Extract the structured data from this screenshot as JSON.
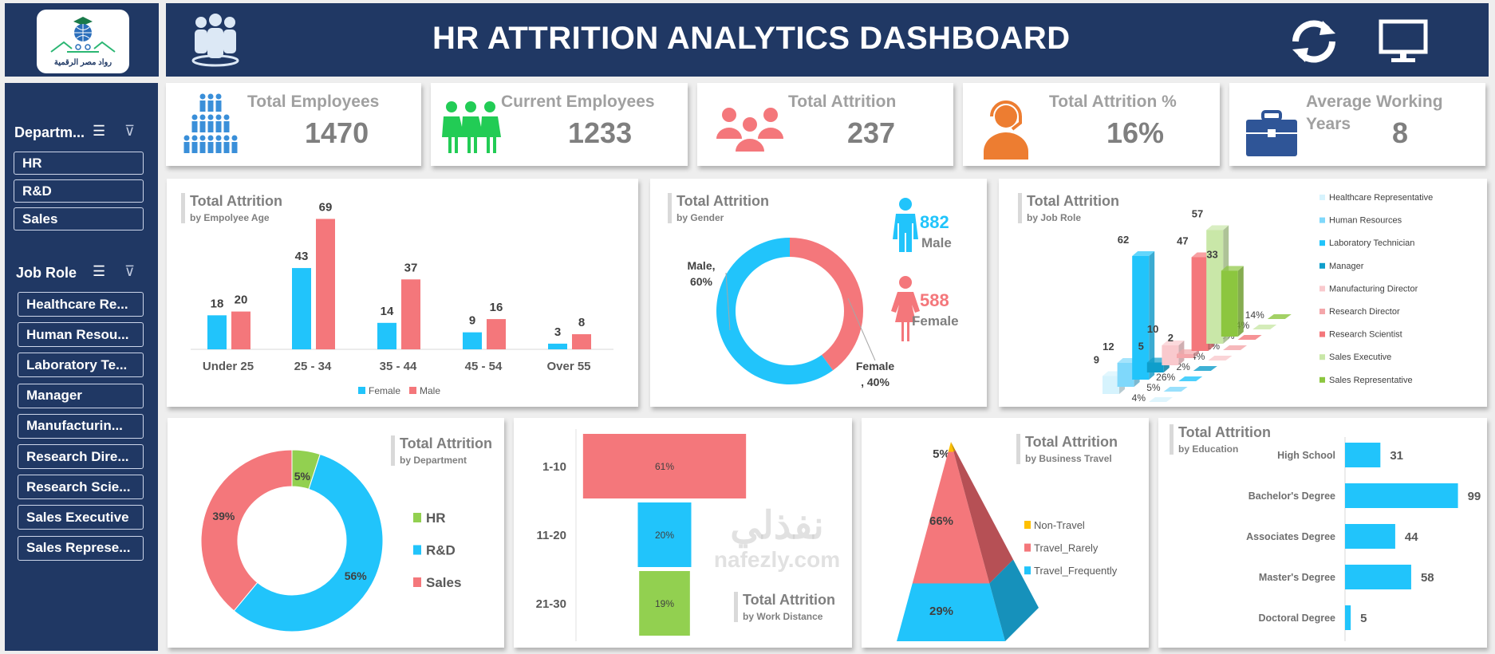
{
  "header": {
    "title": "HR ATTRITION ANALYTICS DASHBOARD",
    "logo_text": "رواد مصر الرقمية",
    "icons": [
      "people-group-icon",
      "refresh-icon",
      "monitor-icon"
    ]
  },
  "colors": {
    "navy": "#203864",
    "blue": "#21c4fb",
    "red": "#f4777b",
    "green": "#92d050",
    "orange": "#ed7d31",
    "yellow": "#ffc000",
    "text_grey": "#7f7f7f"
  },
  "sidebar": {
    "department": {
      "label": "Departm...",
      "items": [
        "HR",
        "R&D",
        "Sales"
      ]
    },
    "job_role": {
      "label": "Job Role",
      "items": [
        "Healthcare Re...",
        "Human Resou...",
        "Laboratory Te...",
        "Manager",
        "Manufacturin...",
        "Research Dire...",
        "Research Scie...",
        "Sales Executive",
        "Sales Represe..."
      ]
    }
  },
  "kpis": [
    {
      "title": "Total Employees",
      "value": "1470",
      "icon": "employees-pyramid-icon"
    },
    {
      "title": "Current Employees",
      "value": "1233",
      "icon": "current-employees-icon"
    },
    {
      "title": "Total Attrition",
      "value": "237",
      "icon": "attrition-group-icon"
    },
    {
      "title": "Total Attrition %",
      "value": "16%",
      "icon": "headset-person-icon"
    },
    {
      "title": "Average Working Years",
      "value": "8",
      "icon": "briefcase-icon"
    }
  ],
  "watermark": {
    "arabic": "نفذلي",
    "latin": "nafezly.com"
  },
  "chart_data": [
    {
      "type": "bar",
      "title": "Total Attrition",
      "subtitle": "by Empolyee Age",
      "categories": [
        "Under 25",
        "25 - 34",
        "35 - 44",
        "45 - 54",
        "Over 55"
      ],
      "series": [
        {
          "name": "Female",
          "values": [
            18,
            43,
            14,
            9,
            3
          ]
        },
        {
          "name": "Male",
          "values": [
            20,
            69,
            37,
            16,
            8
          ]
        }
      ],
      "legend": "bottom"
    },
    {
      "type": "pie",
      "title": "Total Attrition",
      "subtitle": "by Gender",
      "slices": [
        {
          "label": "Male",
          "value": 60,
          "text": "Male,",
          "pct": "60%"
        },
        {
          "label": "Female",
          "value": 40,
          "text": "Female",
          "pct": ", 40%"
        }
      ],
      "counts": [
        {
          "label": "Male",
          "value": "882"
        },
        {
          "label": "Female",
          "value": "588"
        }
      ]
    },
    {
      "type": "bar",
      "title": "Total Attrition",
      "subtitle": "by Job Role",
      "categories": [
        "Healthcare Representative",
        "Human Resources",
        "Laboratory Technician",
        "Manager",
        "Manufacturing Director",
        "Research Director",
        "Research Scientist",
        "Sales Executive",
        "Sales Representative"
      ],
      "values": [
        9,
        12,
        62,
        5,
        10,
        2,
        47,
        57,
        33
      ],
      "percents": [
        "4%",
        "5%",
        "26%",
        "2%",
        "4%",
        "1%",
        "20%",
        "24%",
        "14%"
      ],
      "colors": [
        "#d6f3fd",
        "#7fd8fb",
        "#21c4fb",
        "#0e9ecb",
        "#f9c9cd",
        "#f4a6aa",
        "#f4777b",
        "#c9e7a8",
        "#8cc63f"
      ],
      "legend": "right"
    },
    {
      "type": "pie",
      "title": "Total Attrition",
      "subtitle": "by Department",
      "slices": [
        {
          "label": "HR",
          "value": 5,
          "pct": "5%"
        },
        {
          "label": "R&D",
          "value": 56,
          "pct": "56%"
        },
        {
          "label": "Sales",
          "value": 39,
          "pct": "39%"
        }
      ],
      "legend": "right"
    },
    {
      "type": "bar",
      "title": "Total Attrition",
      "subtitle": "by Work Distance",
      "categories": [
        "1-10",
        "11-20",
        "21-30"
      ],
      "values": [
        61,
        20,
        19
      ],
      "labels": [
        "61%",
        "20%",
        "19%"
      ]
    },
    {
      "type": "area",
      "title": "Total Attrition",
      "subtitle": "by Business Travel",
      "categories": [
        "Non-Travel",
        "Travel_Rarely",
        "Travel_Frequently"
      ],
      "values": [
        5,
        66,
        29
      ],
      "labels": [
        "5%",
        "66%",
        "29%"
      ],
      "legend": "right"
    },
    {
      "type": "bar",
      "title": "Total Attrition",
      "subtitle": "by Education",
      "categories": [
        "High School",
        "Bachelor's Degree",
        "Associates Degree",
        "Master's Degree",
        "Doctoral Degree"
      ],
      "values": [
        31,
        99,
        44,
        58,
        5
      ]
    }
  ]
}
